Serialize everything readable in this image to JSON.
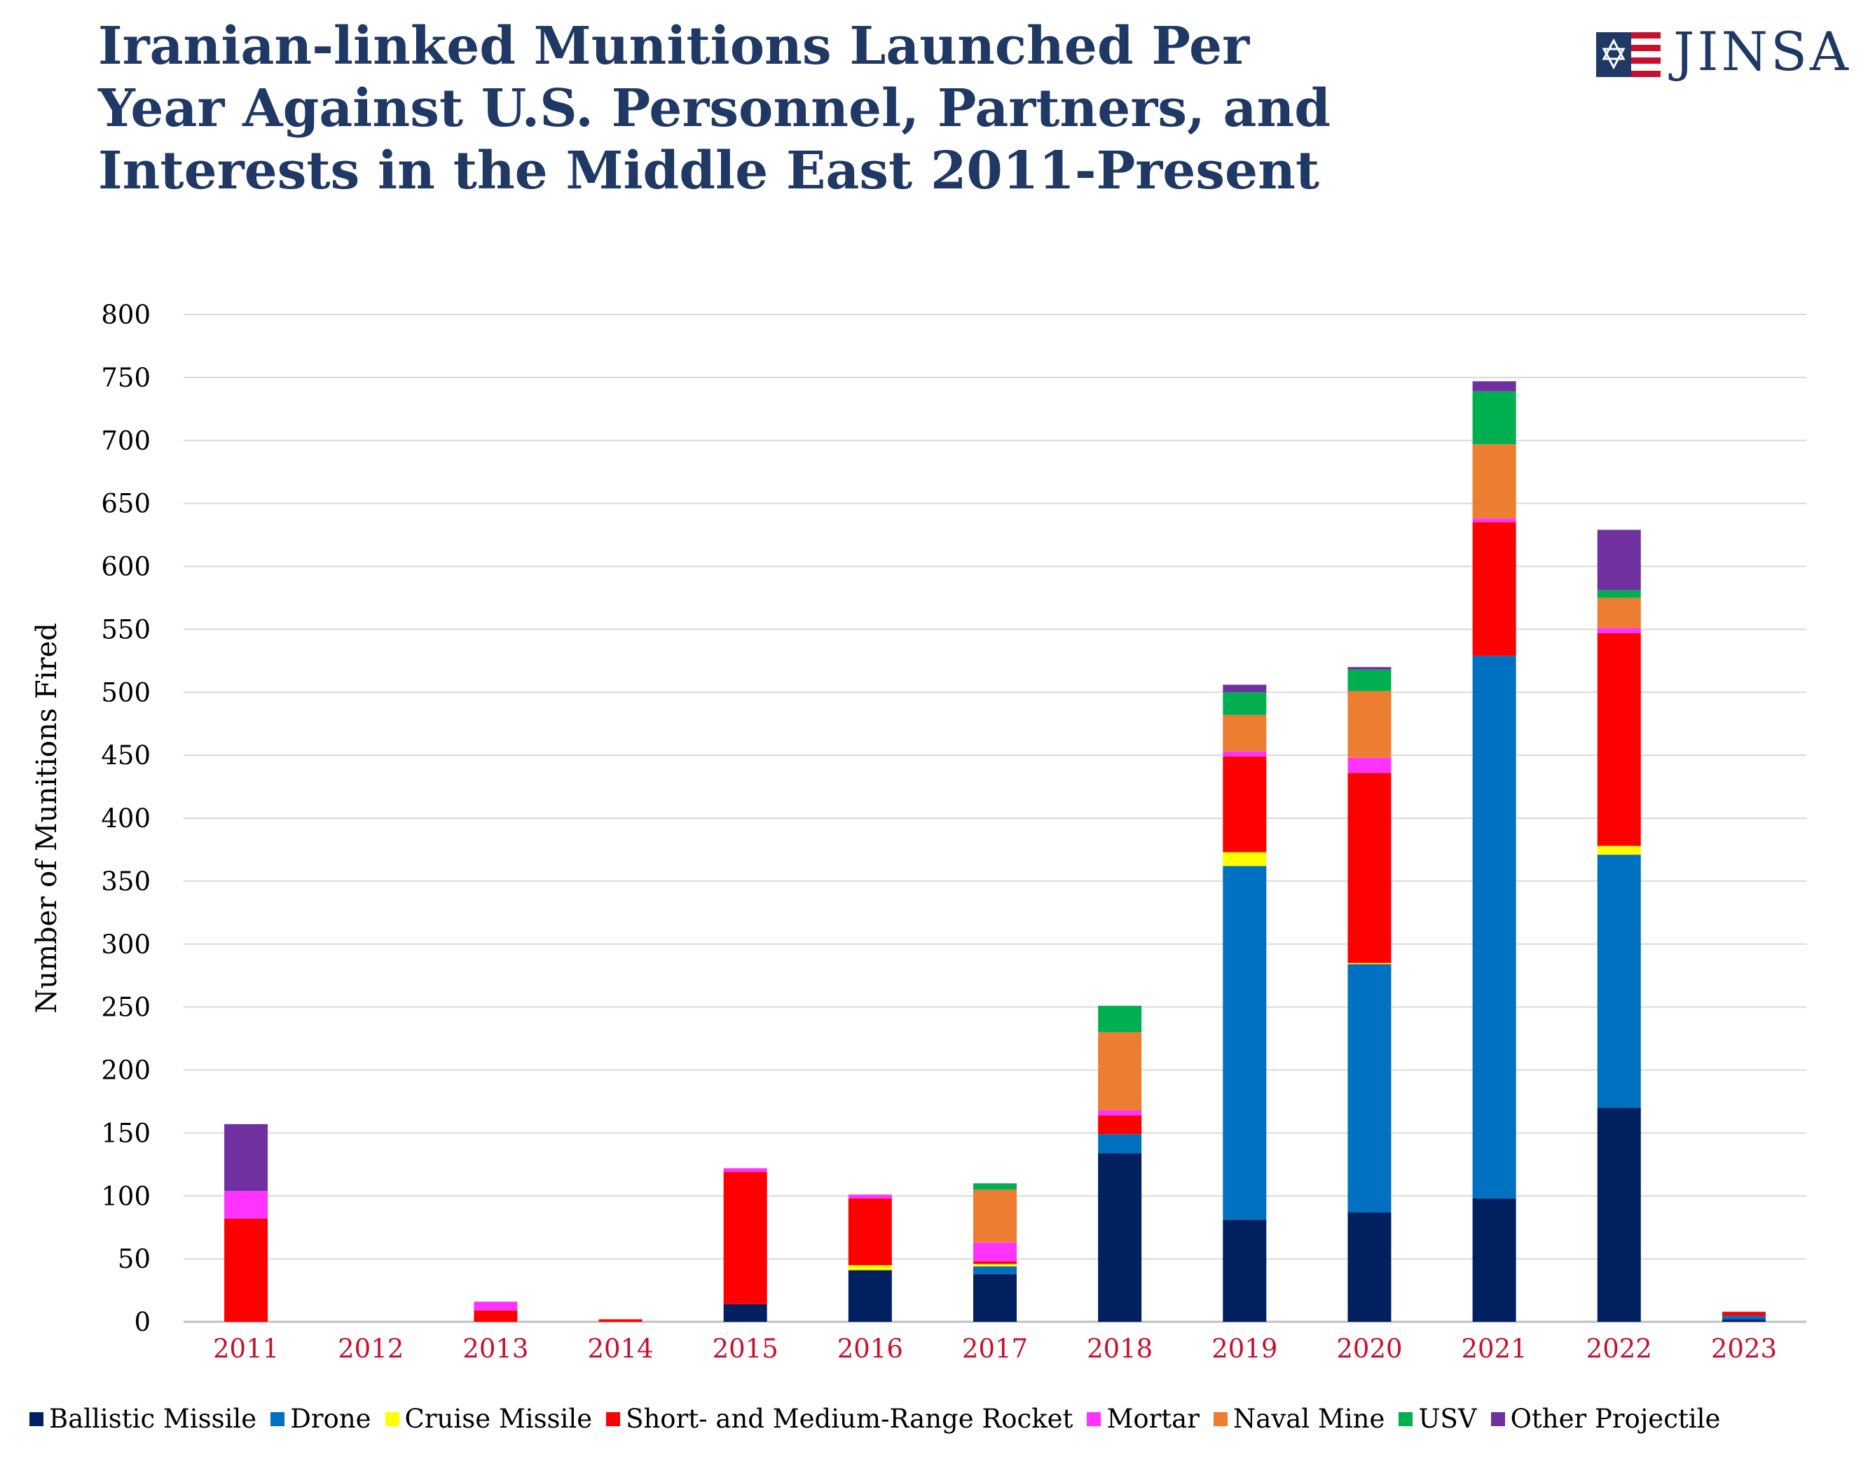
{
  "title_lines": [
    "Iranian-linked Munitions Launched Per",
    "Year Against U.S. Personnel, Partners, and",
    "Interests in the Middle East 2011-Present"
  ],
  "logo": {
    "text": "JINSA",
    "icon": "jinsa-flag-star-icon"
  },
  "colors": {
    "title": "#1f3864",
    "year_labels": "#c8102e",
    "gridlines": "#d9d9d9"
  },
  "chart_data": {
    "type": "bar",
    "stacked": true,
    "title": "Iranian-linked Munitions Launched Per Year Against U.S. Personnel, Partners, and Interests in the Middle East 2011-Present",
    "xlabel": "",
    "ylabel": "Number of Munitions Fired",
    "ylim": [
      0,
      800
    ],
    "yticks": [
      0,
      50,
      100,
      150,
      200,
      250,
      300,
      350,
      400,
      450,
      500,
      550,
      600,
      650,
      700,
      750,
      800
    ],
    "grid": true,
    "legend_position": "bottom",
    "categories": [
      "2011",
      "2012",
      "2013",
      "2014",
      "2015",
      "2016",
      "2017",
      "2018",
      "2019",
      "2020",
      "2021",
      "2022",
      "2023"
    ],
    "series": [
      {
        "name": "Ballistic Missile",
        "color": "#002060",
        "values": [
          0,
          0,
          0,
          0,
          14,
          41,
          38,
          134,
          81,
          87,
          98,
          170,
          2
        ]
      },
      {
        "name": "Drone",
        "color": "#0070c0",
        "values": [
          0,
          0,
          0,
          0,
          0,
          0,
          6,
          15,
          281,
          197,
          431,
          201,
          3
        ]
      },
      {
        "name": "Cruise Missile",
        "color": "#ffff00",
        "values": [
          0,
          0,
          0,
          0,
          0,
          4,
          2,
          0,
          11,
          1,
          0,
          7,
          0
        ]
      },
      {
        "name": "Short- and Medium-Range Rocket",
        "color": "#ff0000",
        "values": [
          82,
          0,
          9,
          2,
          105,
          53,
          2,
          15,
          76,
          151,
          106,
          169,
          3
        ]
      },
      {
        "name": "Mortar",
        "color": "#ff33ff",
        "values": [
          22,
          0,
          7,
          0,
          3,
          3,
          15,
          4,
          4,
          12,
          3,
          4,
          0
        ]
      },
      {
        "name": "Naval Mine",
        "color": "#ed7d31",
        "values": [
          0,
          0,
          0,
          0,
          0,
          0,
          42,
          62,
          29,
          53,
          59,
          24,
          0
        ]
      },
      {
        "name": "USV",
        "color": "#00b050",
        "values": [
          0,
          0,
          0,
          0,
          0,
          0,
          5,
          21,
          18,
          17,
          42,
          6,
          0
        ]
      },
      {
        "name": "Other Projectile",
        "color": "#7030a0",
        "values": [
          53,
          0,
          0,
          0,
          0,
          0,
          0,
          0,
          6,
          2,
          8,
          48,
          0
        ]
      }
    ]
  }
}
